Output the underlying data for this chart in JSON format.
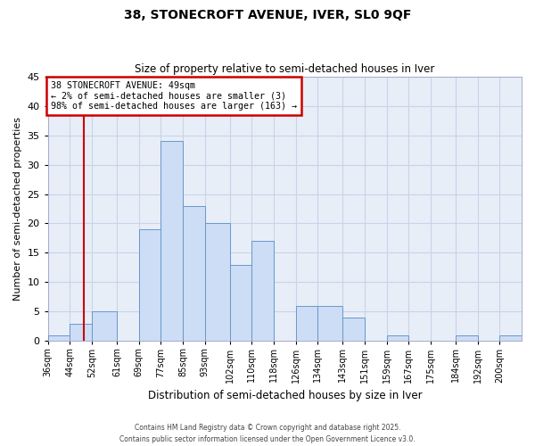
{
  "title": "38, STONECROFT AVENUE, IVER, SL0 9QF",
  "subtitle": "Size of property relative to semi-detached houses in Iver",
  "xlabel": "Distribution of semi-detached houses by size in Iver",
  "ylabel": "Number of semi-detached properties",
  "bin_labels": [
    "36sqm",
    "44sqm",
    "52sqm",
    "61sqm",
    "69sqm",
    "77sqm",
    "85sqm",
    "93sqm",
    "102sqm",
    "110sqm",
    "118sqm",
    "126sqm",
    "134sqm",
    "143sqm",
    "151sqm",
    "159sqm",
    "167sqm",
    "175sqm",
    "184sqm",
    "192sqm",
    "200sqm"
  ],
  "bar_heights": [
    1,
    3,
    5,
    0,
    19,
    34,
    23,
    20,
    13,
    17,
    0,
    6,
    6,
    4,
    0,
    1,
    0,
    0,
    1,
    0,
    1
  ],
  "bar_color": "#ccddf5",
  "bar_edge_color": "#6699cc",
  "grid_color": "#c8d4e8",
  "background_color": "#e8eef8",
  "property_line_x": 49,
  "bin_edges_values": [
    36,
    44,
    52,
    61,
    69,
    77,
    85,
    93,
    102,
    110,
    118,
    126,
    134,
    143,
    151,
    159,
    167,
    175,
    184,
    192,
    200
  ],
  "annotation_title": "38 STONECROFT AVENUE: 49sqm",
  "annotation_line1": "← 2% of semi-detached houses are smaller (3)",
  "annotation_line2": "98% of semi-detached houses are larger (163) →",
  "annotation_box_facecolor": "#ffffff",
  "annotation_edge_color": "#cc0000",
  "vline_color": "#cc0000",
  "ylim": [
    0,
    45
  ],
  "yticks": [
    0,
    5,
    10,
    15,
    20,
    25,
    30,
    35,
    40,
    45
  ],
  "figure_bg": "#ffffff",
  "footnote1": "Contains HM Land Registry data © Crown copyright and database right 2025.",
  "footnote2": "Contains public sector information licensed under the Open Government Licence v3.0."
}
